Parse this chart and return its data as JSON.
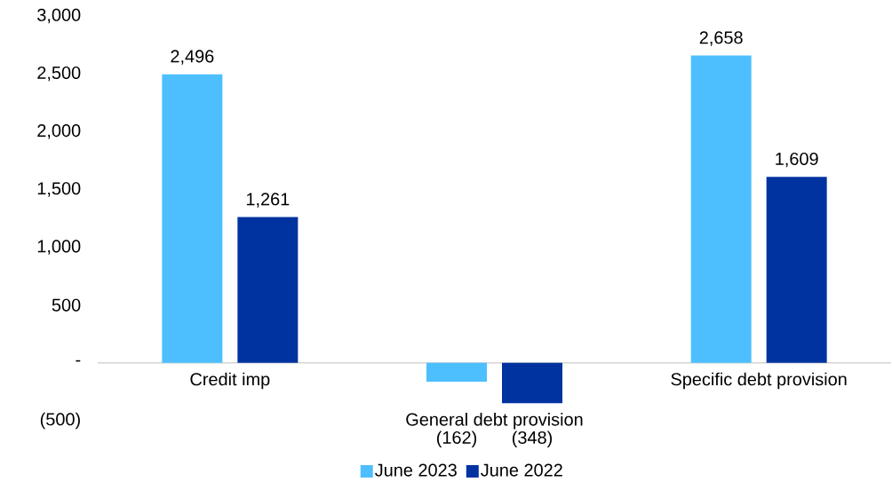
{
  "chart_data": {
    "type": "bar",
    "categories": [
      "Credit imp",
      "General debt provision",
      "Specific debt provision"
    ],
    "series": [
      {
        "name": "June 2023",
        "color": "#4dbfff",
        "values": [
          2496,
          -162,
          2658
        ],
        "value_labels": [
          "2,496",
          "(162)",
          "2,658"
        ]
      },
      {
        "name": "June 2022",
        "color": "#0033a0",
        "values": [
          1261,
          -348,
          1609
        ],
        "value_labels": [
          "1,261",
          "(348)",
          "1,609"
        ]
      }
    ],
    "ylim": [
      -500,
      3000
    ],
    "yticks": [
      {
        "value": -500,
        "label": "(500)"
      },
      {
        "value": 0,
        "label": "-"
      },
      {
        "value": 500,
        "label": "500"
      },
      {
        "value": 1000,
        "label": "1,000"
      },
      {
        "value": 1500,
        "label": "1,500"
      },
      {
        "value": 2000,
        "label": "2,000"
      },
      {
        "value": 2500,
        "label": "2,500"
      },
      {
        "value": 3000,
        "label": "3,000"
      }
    ],
    "legend": "bottom",
    "grid": false
  }
}
